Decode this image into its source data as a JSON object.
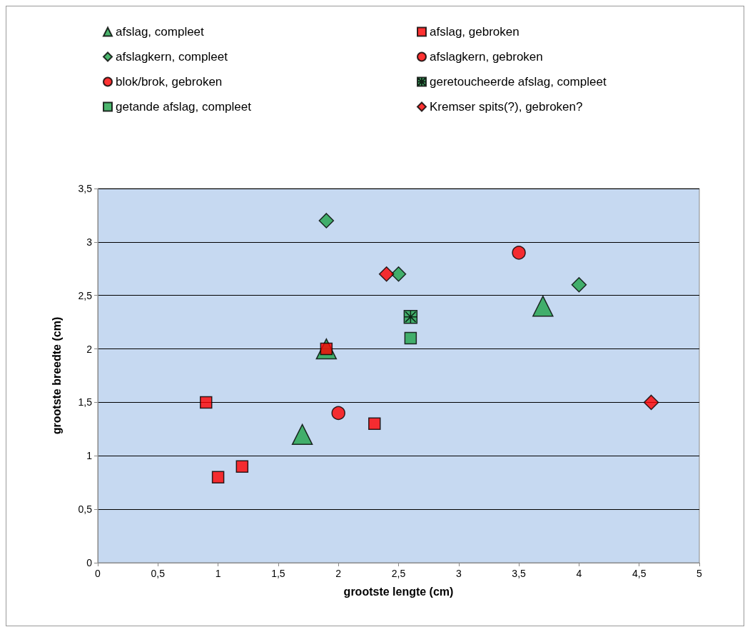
{
  "chart_data": {
    "type": "scatter",
    "xlabel": "grootste lengte (cm)",
    "ylabel": "grootste breedte (cm)",
    "xlim": [
      0,
      5
    ],
    "ylim": [
      0,
      3.5
    ],
    "xticks": [
      0,
      {
        "value": 0.5,
        "label": "0,5"
      },
      1,
      {
        "value": 1.5,
        "label": "1,5"
      },
      2,
      {
        "value": 2.5,
        "label": "2,5"
      },
      3,
      {
        "value": 3.5,
        "label": "3,5"
      },
      4,
      {
        "value": 4.5,
        "label": "4,5"
      },
      5
    ],
    "yticks": [
      0,
      {
        "value": 0.5,
        "label": "0,5"
      },
      1,
      {
        "value": 1.5,
        "label": "1,5"
      },
      2,
      {
        "value": 2.5,
        "label": "2,5"
      },
      3,
      {
        "value": 3.5,
        "label": "3,5"
      }
    ],
    "grid": "y",
    "legend": "top",
    "series": [
      {
        "name": "afslag, compleet",
        "color": "#1fa34a",
        "marker": "triangle",
        "x": [
          1.7,
          1.9,
          3.7
        ],
        "values": [
          1.2,
          2.0,
          2.4
        ]
      },
      {
        "name": "afslag, gebroken",
        "color": "#ff0000",
        "marker": "square",
        "x": [
          0.9,
          1.0,
          1.2,
          1.9,
          2.3
        ],
        "values": [
          1.5,
          0.8,
          0.9,
          2.0,
          1.3
        ]
      },
      {
        "name": "afslagkern, compleet",
        "color": "#1fa34a",
        "marker": "diamond",
        "x": [
          1.9,
          2.5,
          4.0
        ],
        "values": [
          3.2,
          2.7,
          2.6
        ]
      },
      {
        "name": "afslagkern, gebroken",
        "color": "#ff0000",
        "marker": "circle",
        "x": [
          3.5
        ],
        "values": [
          2.9
        ]
      },
      {
        "name": "blok/brok, gebroken",
        "color": "#ff0000",
        "marker": "circle",
        "x": [
          2.0
        ],
        "values": [
          1.4
        ]
      },
      {
        "name": "geretoucheerde afslag, compleet",
        "color": "#1fa34a",
        "marker": "cross",
        "x": [
          2.6
        ],
        "values": [
          2.3
        ]
      },
      {
        "name": "getande afslag, compleet",
        "color": "#1fa34a",
        "marker": "square",
        "x": [
          2.6
        ],
        "values": [
          2.1
        ]
      },
      {
        "name": "Kremser spits(?), gebroken?",
        "color": "#ff0000",
        "marker": "diamond",
        "x": [
          2.4,
          4.6
        ],
        "values": [
          2.7,
          1.5
        ]
      }
    ]
  }
}
